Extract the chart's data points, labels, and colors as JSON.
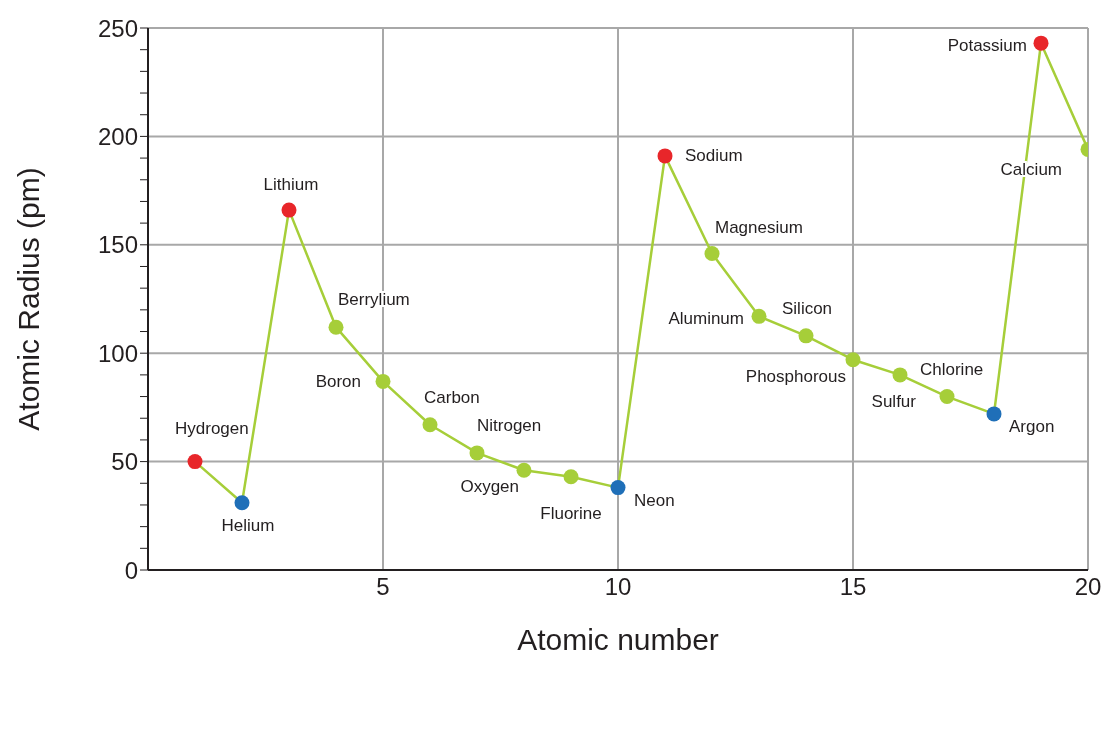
{
  "chart_data": {
    "type": "line",
    "xlabel": "Atomic number",
    "ylabel": "Atomic Radius (pm)",
    "x": [
      1,
      2,
      3,
      4,
      5,
      6,
      7,
      8,
      9,
      10,
      11,
      12,
      13,
      14,
      15,
      16,
      17,
      18,
      19,
      20
    ],
    "values": [
      50,
      31,
      166,
      112,
      87,
      67,
      54,
      46,
      43,
      38,
      191,
      146,
      117,
      108,
      97,
      90,
      80,
      72,
      243,
      194
    ],
    "color": "#a6ce39",
    "colors": [
      "#e8262a",
      "#1f6fb8",
      "#e8262a",
      "#a6ce39",
      "#a6ce39",
      "#a6ce39",
      "#a6ce39",
      "#a6ce39",
      "#a6ce39",
      "#1f6fb8",
      "#e8262a",
      "#a6ce39",
      "#a6ce39",
      "#a6ce39",
      "#a6ce39",
      "#a6ce39",
      "#a6ce39",
      "#1f6fb8",
      "#e8262a",
      "#a6ce39"
    ],
    "marker": "circle",
    "grid": true,
    "xlim": [
      0,
      20
    ],
    "xticks": [
      5,
      10,
      15,
      20
    ],
    "ylim": [
      0,
      250
    ],
    "yticks": [
      0,
      {
        "value": 10,
        "label": null
      },
      {
        "value": 20,
        "label": null
      },
      {
        "value": 30,
        "label": null
      },
      {
        "value": 40,
        "label": null
      },
      50,
      {
        "value": 60,
        "label": null
      },
      {
        "value": 70,
        "label": null
      },
      {
        "value": 80,
        "label": null
      },
      {
        "value": 90,
        "label": null
      },
      100,
      {
        "value": 110,
        "label": null
      },
      {
        "value": 120,
        "label": null
      },
      {
        "value": 130,
        "label": null
      },
      {
        "value": 140,
        "label": null
      },
      150,
      {
        "value": 160,
        "label": null
      },
      {
        "value": 170,
        "label": null
      },
      {
        "value": 180,
        "label": null
      },
      {
        "value": 190,
        "label": null
      },
      200,
      {
        "value": 210,
        "label": null
      },
      {
        "value": 220,
        "label": null
      },
      {
        "value": 230,
        "label": null
      },
      {
        "value": 240,
        "label": null
      },
      250
    ],
    "annotations": [
      {
        "text": "Hydrogen",
        "x": 1,
        "y": 50
      },
      {
        "text": "Helium",
        "x": 2,
        "y": 31
      },
      {
        "text": "Lithium",
        "x": 3,
        "y": 166
      },
      {
        "text": "Berrylium",
        "x": 4,
        "y": 112
      },
      {
        "text": "Boron",
        "x": 5,
        "y": 87
      },
      {
        "text": "Carbon",
        "x": 6,
        "y": 67
      },
      {
        "text": "Nitrogen",
        "x": 7,
        "y": 54
      },
      {
        "text": "Oxygen",
        "x": 8,
        "y": 46
      },
      {
        "text": "Fluorine",
        "x": 9,
        "y": 43
      },
      {
        "text": "Neon",
        "x": 10,
        "y": 38
      },
      {
        "text": "Sodium",
        "x": 11,
        "y": 191
      },
      {
        "text": "Magnesium",
        "x": 12,
        "y": 146
      },
      {
        "text": "Aluminum",
        "x": 13,
        "y": 117
      },
      {
        "text": "Silicon",
        "x": 14,
        "y": 108
      },
      {
        "text": "Phosphorous",
        "x": 15,
        "y": 97
      },
      {
        "text": "Sulfur",
        "x": 16,
        "y": 90
      },
      {
        "text": "Chlorine",
        "x": 17,
        "y": 80
      },
      {
        "text": "Argon",
        "x": 18,
        "y": 72
      },
      {
        "text": "Potassium",
        "x": 19,
        "y": 243
      },
      {
        "text": "Calcium",
        "x": 20,
        "y": 194
      }
    ]
  }
}
